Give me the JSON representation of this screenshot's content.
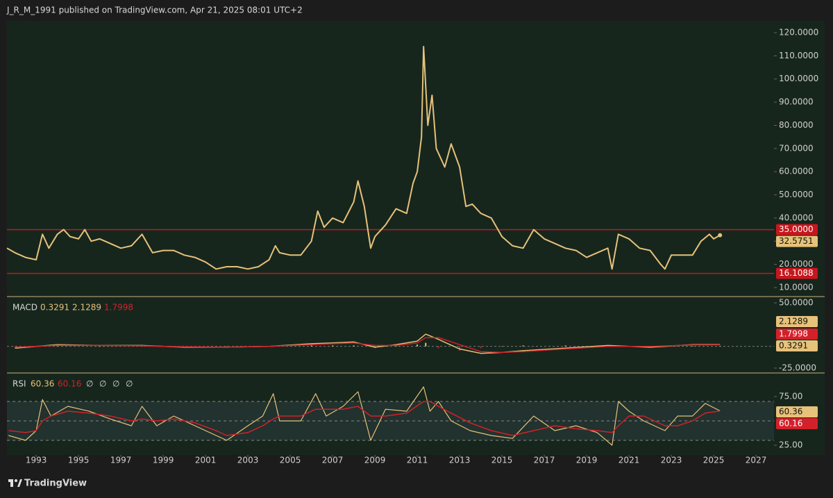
{
  "header": {
    "text": "J_R_M_1991 published on TradingView.com, Apr 21, 2025 08:01 UTC+2"
  },
  "footer": {
    "brand": "TradingView"
  },
  "chart_data": [
    {
      "type": "line",
      "xlim": [
        1991.62,
        2027.85
      ],
      "ylim": [
        6.1,
        125.1
      ],
      "yticks": [
        {
          "value": 10,
          "label": "10.0000"
        },
        {
          "value": 20,
          "label": "20.0000"
        },
        {
          "value": 30,
          "label": "30.0000"
        },
        {
          "value": 40,
          "label": "40.0000"
        },
        {
          "value": 50,
          "label": "50.0000"
        },
        {
          "value": 60,
          "label": "60.0000"
        },
        {
          "value": 70,
          "label": "70.0000"
        },
        {
          "value": 80,
          "label": "80.0000"
        },
        {
          "value": 90,
          "label": "90.0000"
        },
        {
          "value": 100,
          "label": "100.0000"
        },
        {
          "value": 110,
          "label": "110.0000"
        },
        {
          "value": 120,
          "label": "120.0000"
        }
      ],
      "x": [
        1991.62,
        1992,
        1992.5,
        1993,
        1993.3,
        1993.6,
        1994,
        1994.3,
        1994.6,
        1995,
        1995.3,
        1995.6,
        1996,
        1996.5,
        1997,
        1997.5,
        1998,
        1998.5,
        1999,
        1999.5,
        2000,
        2000.5,
        2001,
        2001.5,
        2002,
        2002.5,
        2003,
        2003.5,
        2004,
        2004.3,
        2004.5,
        2005,
        2005.5,
        2006,
        2006.3,
        2006.6,
        2007,
        2007.5,
        2008,
        2008.2,
        2008.5,
        2008.8,
        2009,
        2009.5,
        2010,
        2010.5,
        2010.8,
        2011,
        2011.2,
        2011.3,
        2011.5,
        2011.7,
        2011.9,
        2012.3,
        2012.6,
        2013,
        2013.3,
        2013.6,
        2014,
        2014.5,
        2015,
        2015.5,
        2016,
        2016.5,
        2017,
        2017.5,
        2018,
        2018.5,
        2019,
        2019.5,
        2020,
        2020.2,
        2020.5,
        2021,
        2021.5,
        2022,
        2022.5,
        2022.7,
        2023,
        2023.5,
        2024,
        2024.4,
        2024.8,
        2025,
        2025.3
      ],
      "series": [
        {
          "color": "#e6c27a",
          "values": [
            27,
            25,
            23,
            22,
            33,
            27,
            33,
            35,
            32,
            31,
            35,
            30,
            31,
            29,
            27,
            28,
            33,
            25,
            26,
            26,
            24,
            23,
            21,
            18,
            19,
            19,
            18,
            19,
            22,
            28,
            25,
            24,
            24,
            30,
            43,
            36,
            40,
            38,
            47,
            56,
            45,
            27,
            32,
            37,
            44,
            42,
            55,
            60,
            75,
            114,
            80,
            93,
            70,
            62,
            72,
            62,
            45,
            46,
            42,
            40,
            32,
            28,
            27,
            35,
            31,
            29,
            27,
            26,
            23,
            25,
            27,
            18,
            33,
            31,
            27,
            26,
            20,
            18,
            24,
            24,
            24,
            30,
            33,
            31,
            32.5751
          ]
        }
      ],
      "lines": [
        {
          "value": 35,
          "label": "35.0000",
          "color": "#c8161d"
        },
        {
          "value": 16.1088,
          "label": "16.1088",
          "color": "#c8161d"
        }
      ]
    },
    {
      "type": "macd",
      "title": "MACD",
      "xlim": [
        1991.62,
        2027.85
      ],
      "ylim": [
        -30.6,
        57.2
      ],
      "yticks": [
        {
          "value": 50,
          "label": "50.0000"
        },
        {
          "value": -25,
          "label": "-25.0000"
        }
      ],
      "x": [
        1992,
        1994,
        1996,
        1998,
        2000,
        2002,
        2004,
        2006,
        2007,
        2008,
        2009,
        2010,
        2011,
        2011.4,
        2012,
        2013,
        2014,
        2015,
        2016,
        2018,
        2020,
        2022,
        2024,
        2025.3
      ],
      "series": [
        {
          "color": "#e6c27a",
          "values": [
            -2,
            2,
            1,
            1,
            -1,
            -1,
            0,
            3,
            4,
            5,
            -1,
            2,
            6,
            14,
            8,
            -3,
            -8,
            -7,
            -5,
            -2,
            1,
            -1,
            2,
            2.1289
          ]
        },
        {
          "color": "#d4202a",
          "values": [
            -1,
            1,
            1,
            0.5,
            -0.5,
            -1,
            0,
            2,
            3,
            4,
            1,
            1,
            4,
            10,
            10,
            2,
            -6,
            -7,
            -6,
            -3,
            0,
            0,
            1.5,
            1.7998
          ]
        }
      ],
      "histogram": {
        "color": "#e6c27a",
        "negative_color": "#d4202a",
        "values": [
          -1,
          1,
          0,
          0.5,
          -0.5,
          0,
          0,
          1,
          1,
          1,
          -2,
          1,
          2,
          4,
          -2,
          -5,
          -2,
          0,
          1,
          1,
          1,
          -1,
          0.5,
          0.3291
        ]
      }
    },
    {
      "type": "rsi",
      "title": "RSI",
      "xlim": [
        1991.62,
        2027.85
      ],
      "xticks": [
        1993,
        1995,
        1997,
        1999,
        2001,
        2003,
        2005,
        2007,
        2009,
        2011,
        2013,
        2015,
        2017,
        2019,
        2021,
        2023,
        2025,
        2027
      ],
      "ylim": [
        15,
        99.3
      ],
      "yticks": [
        {
          "value": 75,
          "label": "75.00"
        },
        {
          "value": 25,
          "label": "25.00"
        }
      ],
      "levels": [
        70,
        50,
        30
      ],
      "header_extra": [
        "∅",
        "∅",
        "∅",
        "∅"
      ],
      "x": [
        1991.7,
        1992.5,
        1993,
        1993.3,
        1993.7,
        1994.5,
        1995.5,
        1996.5,
        1997.5,
        1998,
        1998.7,
        1999.5,
        2000.5,
        2001.5,
        2002,
        2003,
        2003.7,
        2004.2,
        2004.5,
        2005.5,
        2006.2,
        2006.7,
        2007.5,
        2008.2,
        2008.8,
        2009.5,
        2010.5,
        2011.3,
        2011.6,
        2012,
        2012.6,
        2013.5,
        2014.5,
        2015.5,
        2016.5,
        2017.5,
        2018.5,
        2019.5,
        2020.2,
        2020.5,
        2021,
        2021.7,
        2022.7,
        2023.3,
        2024,
        2024.6,
        2025.3
      ],
      "series": [
        {
          "color": "#e6c27a",
          "values": [
            35,
            30,
            40,
            72,
            55,
            65,
            60,
            52,
            45,
            65,
            45,
            55,
            45,
            35,
            30,
            45,
            55,
            78,
            50,
            50,
            78,
            55,
            65,
            80,
            30,
            62,
            60,
            85,
            60,
            70,
            50,
            40,
            35,
            32,
            55,
            40,
            45,
            38,
            25,
            70,
            60,
            50,
            40,
            55,
            55,
            68,
            60.36
          ]
        },
        {
          "color": "#d4202a",
          "values": [
            40,
            38,
            40,
            50,
            55,
            60,
            58,
            55,
            50,
            52,
            50,
            52,
            48,
            40,
            35,
            38,
            45,
            52,
            55,
            55,
            62,
            62,
            62,
            65,
            55,
            55,
            58,
            70,
            70,
            65,
            58,
            48,
            40,
            35,
            40,
            45,
            42,
            40,
            38,
            45,
            55,
            55,
            45,
            45,
            50,
            58,
            60.16
          ]
        }
      ]
    }
  ]
}
